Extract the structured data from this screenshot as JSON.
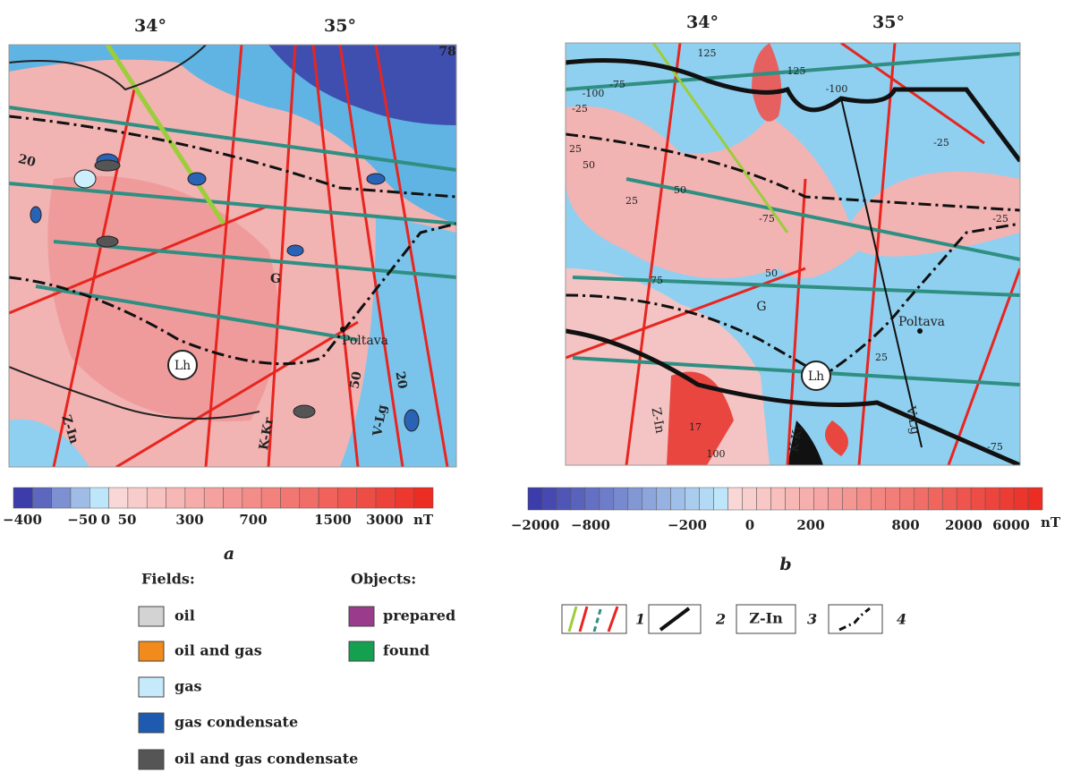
{
  "panel_a": {
    "label": "a",
    "longitudes": [
      "34°",
      "35°"
    ],
    "corner_label": "78",
    "map_labels": [
      "20",
      "G",
      "Poltava",
      "Lh",
      "Z-In",
      "K-Kr",
      "V-Lg",
      "50",
      "20"
    ],
    "colorbar": {
      "labels": [
        "−400",
        "−50",
        "0",
        "50",
        "300",
        "700",
        "1500",
        "3000"
      ],
      "unit": "nT"
    }
  },
  "panel_b": {
    "label": "b",
    "longitudes": [
      "34°",
      "35°"
    ],
    "map_labels": [
      "125",
      "-100",
      "-75",
      "-25",
      "125",
      "-100",
      "-25",
      "25",
      "50",
      "25",
      "50",
      "-75",
      "75",
      "50",
      "-25",
      "25",
      "G",
      "Poltava",
      "Lh",
      "Z-In",
      "K-Kr",
      "V-Lg",
      "17",
      "100",
      "-75"
    ],
    "colorbar": {
      "labels": [
        "−2000",
        "−800",
        "−200",
        "0",
        "200",
        "800",
        "2000",
        "6000"
      ],
      "unit": "nT"
    }
  },
  "legend": {
    "fields": {
      "title": "Fields:",
      "items": [
        "oil",
        "oil and gas",
        "gas",
        "gas condensate",
        "oil and gas condensate"
      ]
    },
    "objects": {
      "title": "Objects:",
      "items": [
        "prepared",
        "found"
      ]
    },
    "symbols": [
      {
        "number": "1"
      },
      {
        "number": "2"
      },
      {
        "label": "Z-In",
        "number": "3"
      },
      {
        "number": "4"
      }
    ]
  }
}
